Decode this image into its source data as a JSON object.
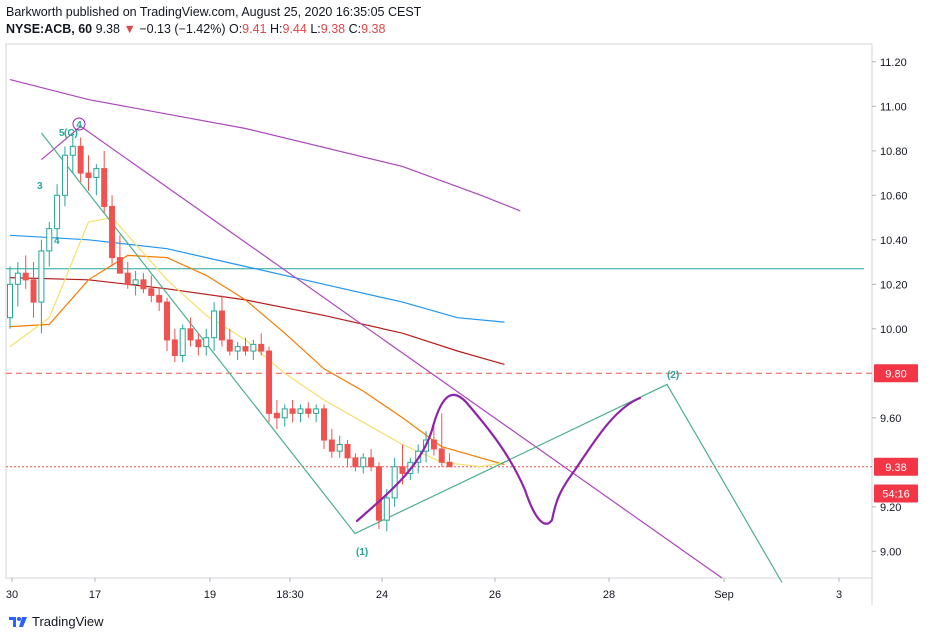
{
  "header": {
    "publisher": "Barkworth published on TradingView.com, August 25, 2020 16:35:05 CEST",
    "symbol": "NYSE:ACB, 60",
    "last": "9.38",
    "change": "−0.13 (−1.42%)",
    "o_label": "O:",
    "o": "9.41",
    "h_label": "H:",
    "h": "9.44",
    "l_label": "L:",
    "l": "9.38",
    "c_label": "C:",
    "c": "9.38"
  },
  "footer": {
    "brand": "TradingView"
  },
  "colors": {
    "up": "#26a69a",
    "down": "#ef5350",
    "price_tag": "#f23645",
    "ma_fast": "#f5e06b",
    "ma_orange": "#f57c00",
    "ma_blue": "#2196f3",
    "ma_red": "#b71c1c",
    "ma_purple": "#ab47bc",
    "cyan_line": "#26a6a6",
    "wave_green": "#4caf8f",
    "wave_purple": "#8e24aa"
  },
  "chart_data": {
    "type": "candlestick",
    "ylim": [
      8.88,
      11.28
    ],
    "y_ticks": [
      "11.20",
      "11.00",
      "10.80",
      "10.60",
      "10.40",
      "10.20",
      "10.00",
      "9.60",
      "9.20",
      "9.00"
    ],
    "x_ticks": [
      "30",
      "17",
      "19",
      "18:30",
      "24",
      "26",
      "28",
      "Sep",
      "3"
    ],
    "price_labels": [
      {
        "text": "9.80",
        "value": 9.8
      },
      {
        "text": "9.38",
        "value": 9.38
      },
      {
        "text": "54:16",
        "value": 9.26
      }
    ],
    "horizontal_lines": [
      {
        "value": 10.27,
        "style": "solid",
        "color": "cyan"
      },
      {
        "value": 9.8,
        "style": "dashed",
        "color": "red"
      },
      {
        "value": 9.38,
        "style": "dotted",
        "color": "red"
      }
    ],
    "candles_ohlc": [
      [
        10.05,
        10.28,
        10.0,
        10.2
      ],
      [
        10.2,
        10.3,
        10.1,
        10.25
      ],
      [
        10.25,
        10.33,
        10.18,
        10.22
      ],
      [
        10.22,
        10.3,
        10.05,
        10.12
      ],
      [
        10.12,
        10.4,
        9.98,
        10.35
      ],
      [
        10.35,
        10.48,
        10.28,
        10.45
      ],
      [
        10.45,
        10.65,
        10.4,
        10.6
      ],
      [
        10.6,
        10.82,
        10.55,
        10.78
      ],
      [
        10.78,
        10.88,
        10.7,
        10.82
      ],
      [
        10.82,
        10.86,
        10.66,
        10.7
      ],
      [
        10.7,
        10.78,
        10.62,
        10.68
      ],
      [
        10.68,
        10.74,
        10.6,
        10.72
      ],
      [
        10.72,
        10.8,
        10.52,
        10.55
      ],
      [
        10.55,
        10.6,
        10.28,
        10.32
      ],
      [
        10.32,
        10.42,
        10.25,
        10.25
      ],
      [
        10.25,
        10.3,
        10.18,
        10.2
      ],
      [
        10.2,
        10.26,
        10.15,
        10.22
      ],
      [
        10.22,
        10.25,
        10.16,
        10.18
      ],
      [
        10.18,
        10.24,
        10.12,
        10.15
      ],
      [
        10.15,
        10.18,
        10.08,
        10.12
      ],
      [
        10.12,
        10.14,
        9.9,
        9.95
      ],
      [
        9.95,
        10.0,
        9.85,
        9.88
      ],
      [
        9.88,
        10.02,
        9.85,
        10.0
      ],
      [
        10.0,
        10.05,
        9.92,
        9.95
      ],
      [
        9.95,
        9.98,
        9.88,
        9.92
      ],
      [
        9.92,
        10.0,
        9.88,
        9.96
      ],
      [
        9.96,
        10.12,
        9.9,
        10.08
      ],
      [
        10.08,
        10.15,
        9.92,
        9.95
      ],
      [
        9.95,
        10.0,
        9.88,
        9.9
      ],
      [
        9.9,
        9.94,
        9.86,
        9.92
      ],
      [
        9.92,
        9.96,
        9.88,
        9.9
      ],
      [
        9.9,
        9.95,
        9.86,
        9.93
      ],
      [
        9.93,
        9.98,
        9.88,
        9.9
      ],
      [
        9.9,
        9.92,
        9.58,
        9.62
      ],
      [
        9.62,
        9.68,
        9.55,
        9.6
      ],
      [
        9.6,
        9.66,
        9.56,
        9.64
      ],
      [
        9.64,
        9.68,
        9.58,
        9.62
      ],
      [
        9.62,
        9.66,
        9.58,
        9.64
      ],
      [
        9.64,
        9.67,
        9.6,
        9.62
      ],
      [
        9.62,
        9.66,
        9.58,
        9.64
      ],
      [
        9.64,
        9.66,
        9.46,
        9.5
      ],
      [
        9.5,
        9.55,
        9.42,
        9.45
      ],
      [
        9.45,
        9.52,
        9.42,
        9.48
      ],
      [
        9.48,
        9.5,
        9.38,
        9.42
      ],
      [
        9.42,
        9.44,
        9.36,
        9.38
      ],
      [
        9.38,
        9.44,
        9.35,
        9.42
      ],
      [
        9.42,
        9.46,
        9.36,
        9.38
      ],
      [
        9.38,
        9.4,
        9.1,
        9.14
      ],
      [
        9.14,
        9.28,
        9.09,
        9.24
      ],
      [
        9.24,
        9.42,
        9.2,
        9.38
      ],
      [
        9.38,
        9.48,
        9.3,
        9.35
      ],
      [
        9.35,
        9.42,
        9.32,
        9.4
      ],
      [
        9.4,
        9.48,
        9.35,
        9.45
      ],
      [
        9.45,
        9.54,
        9.4,
        9.5
      ],
      [
        9.5,
        9.58,
        9.43,
        9.46
      ],
      [
        9.46,
        9.62,
        9.38,
        9.4
      ],
      [
        9.4,
        9.44,
        9.38,
        9.38
      ]
    ],
    "indicators": [
      {
        "color": "purple",
        "points": [
          [
            0,
            11.12
          ],
          [
            10,
            11.03
          ],
          [
            30,
            10.9
          ],
          [
            50,
            10.73
          ],
          [
            60,
            10.6
          ],
          [
            65,
            10.53
          ]
        ]
      },
      {
        "color": "blue",
        "points": [
          [
            0,
            10.42
          ],
          [
            10,
            10.4
          ],
          [
            20,
            10.36
          ],
          [
            30,
            10.28
          ],
          [
            40,
            10.2
          ],
          [
            50,
            10.12
          ],
          [
            57,
            10.05
          ],
          [
            63,
            10.03
          ]
        ]
      },
      {
        "color": "darkred",
        "points": [
          [
            0,
            10.23
          ],
          [
            10,
            10.22
          ],
          [
            20,
            10.18
          ],
          [
            30,
            10.13
          ],
          [
            40,
            10.06
          ],
          [
            50,
            9.98
          ],
          [
            57,
            9.9
          ],
          [
            63,
            9.84
          ]
        ]
      },
      {
        "color": "orange",
        "points": [
          [
            0,
            10.01
          ],
          [
            5,
            10.02
          ],
          [
            10,
            10.22
          ],
          [
            15,
            10.33
          ],
          [
            20,
            10.32
          ],
          [
            25,
            10.24
          ],
          [
            30,
            10.13
          ],
          [
            35,
            9.98
          ],
          [
            40,
            9.82
          ],
          [
            45,
            9.72
          ],
          [
            50,
            9.6
          ],
          [
            55,
            9.47
          ],
          [
            60,
            9.42
          ],
          [
            63,
            9.39
          ]
        ]
      },
      {
        "color": "yellow",
        "points": [
          [
            0,
            9.92
          ],
          [
            5,
            10.05
          ],
          [
            10,
            10.48
          ],
          [
            13,
            10.5
          ],
          [
            16,
            10.38
          ],
          [
            20,
            10.22
          ],
          [
            25,
            10.06
          ],
          [
            30,
            9.95
          ],
          [
            35,
            9.8
          ],
          [
            40,
            9.68
          ],
          [
            45,
            9.58
          ],
          [
            50,
            9.48
          ],
          [
            55,
            9.4
          ],
          [
            60,
            9.38
          ],
          [
            63,
            9.4
          ]
        ]
      }
    ],
    "annotations": [
      {
        "text": "5",
        "color": "green"
      },
      {
        "text": "(C)",
        "color": "black"
      },
      {
        "text": "4",
        "color": "purple",
        "circled": true
      },
      {
        "text": "3",
        "color": "green"
      },
      {
        "text": "4",
        "color": "green"
      },
      {
        "text": "(1)",
        "color": "green"
      },
      {
        "text": "(2)",
        "color": "green"
      }
    ]
  }
}
